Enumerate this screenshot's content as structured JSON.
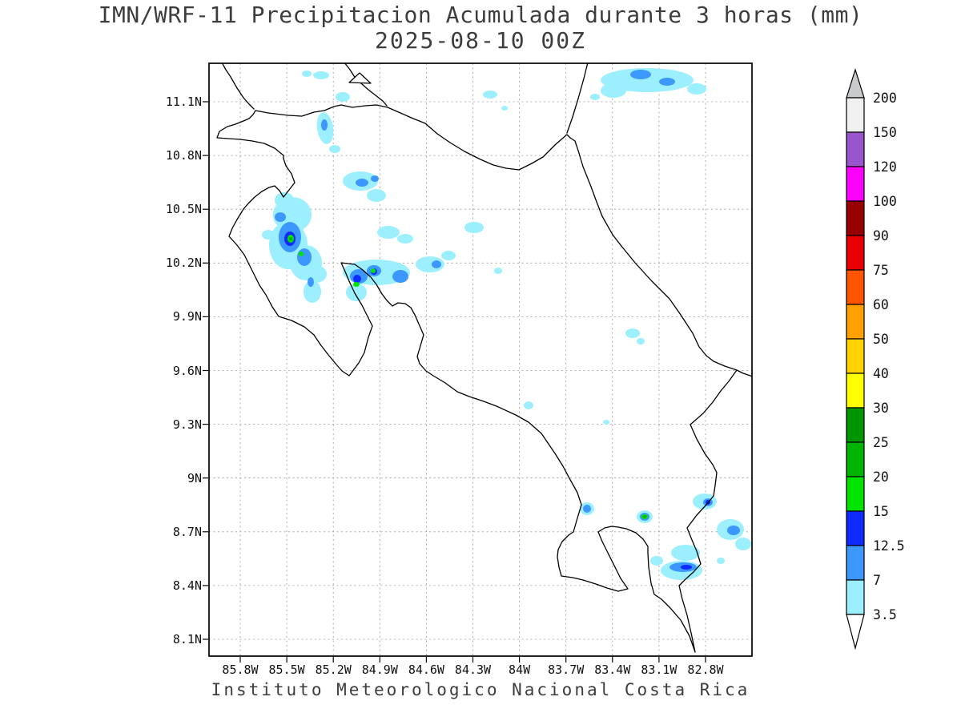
{
  "title": {
    "line1": "IMN/WRF-11 Precipitacion Acumulada durante 3 horas (mm)",
    "line2": "2025-08-10 00Z"
  },
  "footer": {
    "text": "Instituto Meteorologico Nacional Costa Rica"
  },
  "axes": {
    "y_labels": [
      "11.1N",
      "10.8N",
      "10.5N",
      "10.2N",
      "9.9N",
      "9.6N",
      "9.3N",
      "9N",
      "8.7N",
      "8.4N",
      "8.1N"
    ],
    "x_labels": [
      "85.8W",
      "85.5W",
      "85.2W",
      "84.9W",
      "84.6W",
      "84.3W",
      "84W",
      "83.7W",
      "83.4W",
      "83.1W",
      "82.8W"
    ]
  },
  "colorbar": {
    "labels": [
      "200",
      "150",
      "120",
      "100",
      "90",
      "75",
      "60",
      "50",
      "40",
      "30",
      "25",
      "20",
      "15",
      "12.5",
      "7",
      "3.5"
    ],
    "segment_colors": [
      "#F0F0F0",
      "#9955CC",
      "#FF00FF",
      "#960000",
      "#E80000",
      "#FF5500",
      "#FFA000",
      "#FFD200",
      "#FFFF00",
      "#009600",
      "#00B400",
      "#00E400",
      "#0F2BFF",
      "#3C97FF",
      "#9BEFFF"
    ],
    "arrow_up_color": "#C9CACB",
    "arrow_down_color": "#FFFFFF"
  },
  "map": {
    "shade_colors": [
      "#9BEFFF",
      "#3C97FF",
      "#0F2BFF",
      "#00E400",
      "#00B400"
    ],
    "coastline_color": "#000000",
    "gridline_color": "#9a9a9a"
  },
  "chart_data": {
    "type": "map",
    "title": "IMN/WRF-11 Precipitacion Acumulada durante 3 horas (mm)",
    "subtitle": "2025-08-10 00Z",
    "variable": "Accumulated precipitation (3 h)",
    "units": "mm",
    "region": "Costa Rica",
    "lat_ticks": [
      "8.1N",
      "8.4N",
      "8.7N",
      "9N",
      "9.3N",
      "9.6N",
      "9.9N",
      "10.2N",
      "10.5N",
      "10.8N",
      "11.1N"
    ],
    "lon_ticks": [
      "85.8W",
      "85.5W",
      "85.2W",
      "84.9W",
      "84.6W",
      "84.3W",
      "84W",
      "83.7W",
      "83.4W",
      "83.1W",
      "82.8W"
    ],
    "scale_levels_mm": [
      3.5,
      7,
      12.5,
      15,
      20,
      25,
      30,
      40,
      50,
      60,
      75,
      90,
      100,
      120,
      150,
      200
    ],
    "grid": true,
    "legend_position": "right",
    "source": "Instituto Meteorologico Nacional Costa Rica"
  }
}
